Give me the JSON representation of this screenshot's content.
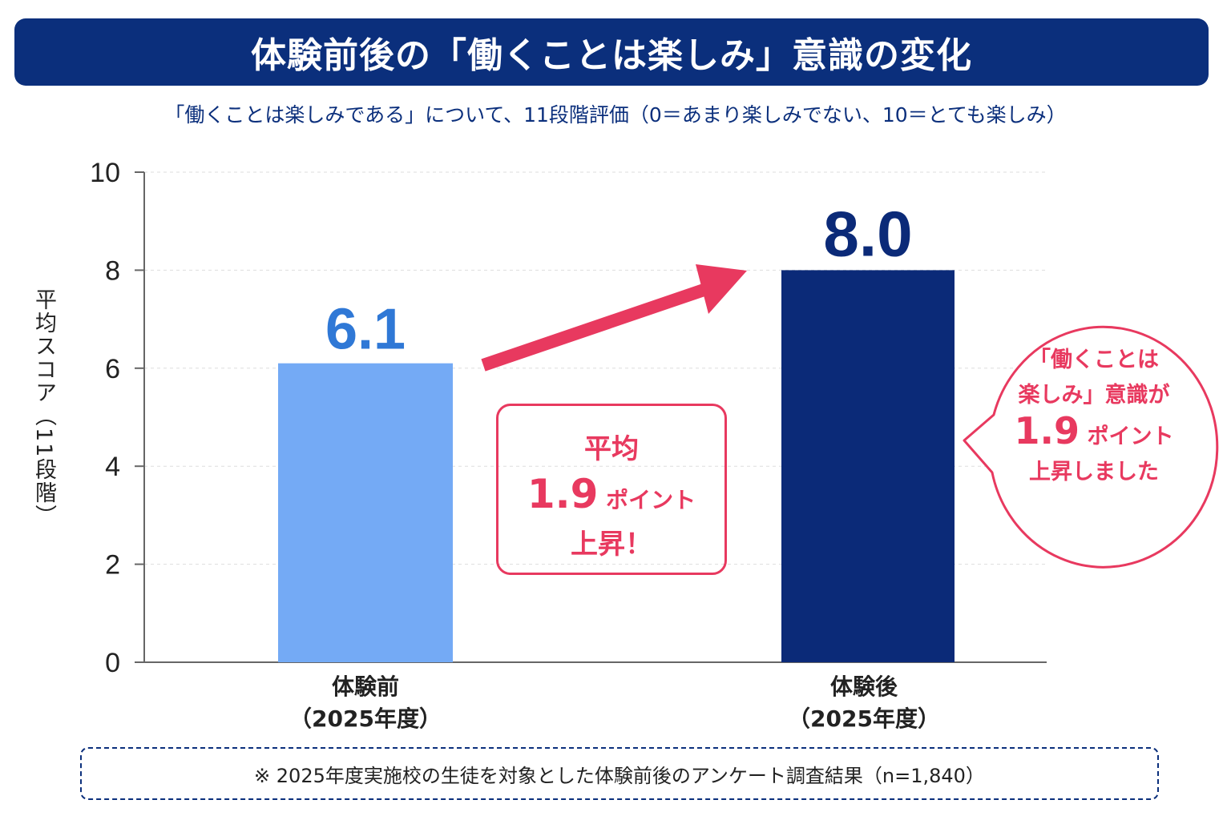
{
  "title": "体験前後の「働くことは楽しみ」意識の変化",
  "subtitle": "「働くことは楽しみである」について、11段階評価（0＝あまり楽しみでない、10＝とても楽しみ）",
  "chart_data": {
    "type": "bar",
    "categories": [
      "体験前\n（2025年度）",
      "体験後\n（2025年度）"
    ],
    "category_lines": [
      [
        "体験前",
        "（2025年度）"
      ],
      [
        "体験後",
        "（2025年度）"
      ]
    ],
    "values": [
      6.1,
      8.0
    ],
    "value_labels": [
      "6.1",
      "8.0"
    ],
    "colors": [
      "#74aaf5",
      "#0b2a78"
    ],
    "ylabel": "平均スコア（11段階）",
    "ylim": [
      0,
      10
    ],
    "yticks": [
      0,
      2,
      4,
      6,
      8,
      10
    ],
    "grid": true,
    "annotations": {
      "box": {
        "line1": "平均",
        "number": "1.9",
        "unit": "ポイント",
        "line3": "上昇！"
      },
      "bubble": {
        "line1": "「働くことは",
        "line2": "楽しみ」意識が",
        "number": "1.9",
        "unit": "ポイント",
        "line4": "上昇しました"
      },
      "arrow_color": "#e8395f"
    }
  },
  "note": "※ 2025年度実施校の生徒を対象とした体験前後のアンケート調査結果（n=1,840）"
}
